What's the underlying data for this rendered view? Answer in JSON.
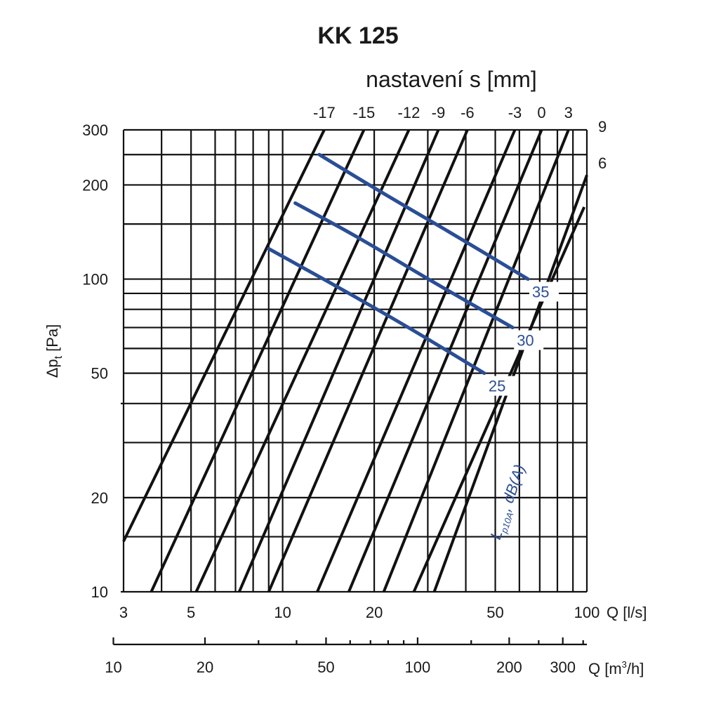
{
  "chart_data": {
    "type": "line",
    "title": "KK 125",
    "subtitle": "nastavení s [mm]",
    "xscale": "log",
    "yscale": "log",
    "xlim": [
      3,
      100
    ],
    "ylim": [
      10,
      300
    ],
    "xlabel": "Q [l/s]",
    "x_ticks": [
      3,
      5,
      10,
      20,
      50,
      100
    ],
    "ylabel_main": "Δp",
    "ylabel_sub": "t",
    "ylabel_unit": "[Pa]",
    "y_ticks": [
      10,
      20,
      50,
      100,
      200,
      300
    ],
    "x_gridlines": [
      3,
      4,
      5,
      6,
      7,
      8,
      9,
      10,
      20,
      30,
      40,
      50,
      60,
      70,
      80,
      90,
      100
    ],
    "y_gridlines": [
      10,
      15,
      20,
      30,
      40,
      50,
      60,
      70,
      80,
      90,
      100,
      150,
      200,
      250,
      300
    ],
    "secondary_axis": {
      "label_main": "Q [m",
      "label_sup": "3",
      "label_end": "/h]",
      "ticks": [
        10,
        20,
        50,
        100,
        200,
        300
      ],
      "minor_ticks": [
        30,
        40,
        60,
        70,
        80,
        90,
        150,
        250,
        350
      ]
    },
    "series": [
      {
        "name": "-17",
        "x": [
          3.0,
          13.7
        ],
        "y": [
          14.5,
          300
        ]
      },
      {
        "name": "-15",
        "x": [
          3.7,
          18.5
        ],
        "y": [
          10,
          300
        ]
      },
      {
        "name": "-12",
        "x": [
          5.2,
          26.0
        ],
        "y": [
          10,
          300
        ]
      },
      {
        "name": "-9",
        "x": [
          7.2,
          32.5
        ],
        "y": [
          10,
          300
        ]
      },
      {
        "name": "-6",
        "x": [
          9.0,
          40.5
        ],
        "y": [
          10,
          300
        ]
      },
      {
        "name": "-3",
        "x": [
          13.0,
          58.0
        ],
        "y": [
          10,
          300
        ]
      },
      {
        "name": "0",
        "x": [
          16.5,
          71.0
        ],
        "y": [
          10,
          300
        ]
      },
      {
        "name": "3",
        "x": [
          21.5,
          87.0
        ],
        "y": [
          10,
          300
        ]
      },
      {
        "name": "6",
        "x": [
          27.0,
          98.0
        ],
        "y": [
          10,
          170
        ]
      },
      {
        "name": "9",
        "x": [
          31.5,
          100.0
        ],
        "y": [
          10,
          215
        ]
      }
    ],
    "noise_curves": [
      {
        "name": "35",
        "x": [
          13.2,
          21.0,
          36.0,
          64.0
        ],
        "y": [
          250,
          190,
          140,
          100
        ]
      },
      {
        "name": "30",
        "x": [
          11.0,
          18.0,
          30.0,
          57.0
        ],
        "y": [
          175,
          135,
          100,
          70
        ]
      },
      {
        "name": "25",
        "x": [
          9.0,
          15.0,
          26.0,
          46.0
        ],
        "y": [
          125,
          95,
          70,
          50
        ]
      }
    ],
    "noise_axis_label": "L",
    "noise_axis_sub": "p10A",
    "noise_axis_unit": ", dB(A)"
  }
}
